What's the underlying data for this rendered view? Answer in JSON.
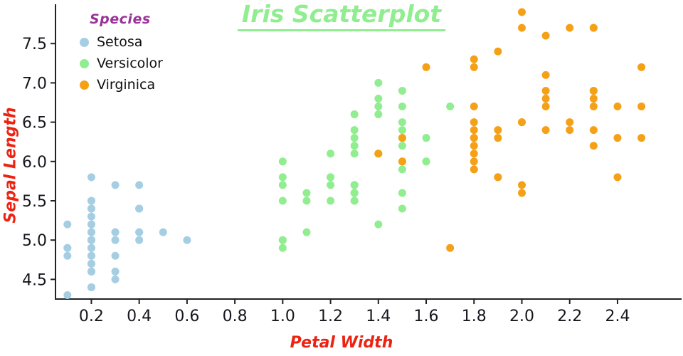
{
  "styles": {
    "title_color": "#90ee90",
    "axis_label_color": "#ee2211",
    "legend_title_color": "#993399",
    "axis_line_color": "#222222",
    "tick_text_color": "#16161d"
  },
  "chart_data": {
    "type": "scatter",
    "title": "Iris Scatterplot",
    "xlabel": "Petal Width",
    "ylabel": "Sepal Length",
    "legend_title": "Species",
    "legend_position": "top-left",
    "grid": false,
    "xlim": [
      0.05,
      2.65
    ],
    "ylim": [
      4.25,
      8.0
    ],
    "xticks": [
      0.2,
      0.4,
      0.6,
      0.8,
      1.0,
      1.2,
      1.4,
      1.6,
      1.8,
      2.0,
      2.2,
      2.4
    ],
    "yticks": [
      4.5,
      5.0,
      5.5,
      6.0,
      6.5,
      7.0,
      7.5
    ],
    "series": [
      {
        "name": "Setosa",
        "color": "#a6cee3",
        "points": [
          [
            0.2,
            5.1
          ],
          [
            0.2,
            4.9
          ],
          [
            0.2,
            4.7
          ],
          [
            0.2,
            4.6
          ],
          [
            0.2,
            5.0
          ],
          [
            0.4,
            5.4
          ],
          [
            0.3,
            4.6
          ],
          [
            0.2,
            5.0
          ],
          [
            0.2,
            4.4
          ],
          [
            0.1,
            4.9
          ],
          [
            0.2,
            5.4
          ],
          [
            0.2,
            4.8
          ],
          [
            0.1,
            4.8
          ],
          [
            0.1,
            4.3
          ],
          [
            0.2,
            5.8
          ],
          [
            0.4,
            5.7
          ],
          [
            0.4,
            5.4
          ],
          [
            0.3,
            5.1
          ],
          [
            0.3,
            5.7
          ],
          [
            0.3,
            5.1
          ],
          [
            0.2,
            5.4
          ],
          [
            0.4,
            5.1
          ],
          [
            0.2,
            4.6
          ],
          [
            0.5,
            5.1
          ],
          [
            0.2,
            4.8
          ],
          [
            0.2,
            5.0
          ],
          [
            0.4,
            5.0
          ],
          [
            0.2,
            5.2
          ],
          [
            0.2,
            5.2
          ],
          [
            0.2,
            4.7
          ],
          [
            0.2,
            4.8
          ],
          [
            0.4,
            5.4
          ],
          [
            0.1,
            5.2
          ],
          [
            0.2,
            5.5
          ],
          [
            0.2,
            4.9
          ],
          [
            0.2,
            5.0
          ],
          [
            0.2,
            5.5
          ],
          [
            0.1,
            4.9
          ],
          [
            0.2,
            4.4
          ],
          [
            0.2,
            5.1
          ],
          [
            0.3,
            5.0
          ],
          [
            0.3,
            4.5
          ],
          [
            0.2,
            4.4
          ],
          [
            0.6,
            5.0
          ],
          [
            0.4,
            5.1
          ],
          [
            0.3,
            4.8
          ],
          [
            0.2,
            5.1
          ],
          [
            0.2,
            4.6
          ],
          [
            0.2,
            5.3
          ],
          [
            0.2,
            5.0
          ]
        ]
      },
      {
        "name": "Versicolor",
        "color": "#90ee90",
        "points": [
          [
            1.4,
            7.0
          ],
          [
            1.5,
            6.4
          ],
          [
            1.5,
            6.9
          ],
          [
            1.3,
            5.5
          ],
          [
            1.5,
            6.5
          ],
          [
            1.3,
            5.7
          ],
          [
            1.6,
            6.3
          ],
          [
            1.0,
            4.9
          ],
          [
            1.3,
            6.6
          ],
          [
            1.4,
            5.2
          ],
          [
            1.0,
            5.0
          ],
          [
            1.5,
            5.9
          ],
          [
            1.0,
            6.0
          ],
          [
            1.4,
            6.1
          ],
          [
            1.3,
            5.6
          ],
          [
            1.4,
            6.7
          ],
          [
            1.5,
            5.6
          ],
          [
            1.0,
            5.8
          ],
          [
            1.5,
            6.2
          ],
          [
            1.1,
            5.6
          ],
          [
            1.8,
            5.9
          ],
          [
            1.3,
            6.1
          ],
          [
            1.5,
            6.3
          ],
          [
            1.2,
            6.1
          ],
          [
            1.3,
            6.4
          ],
          [
            1.4,
            6.6
          ],
          [
            1.4,
            6.8
          ],
          [
            1.7,
            6.7
          ],
          [
            1.5,
            6.0
          ],
          [
            1.0,
            5.7
          ],
          [
            1.1,
            5.5
          ],
          [
            1.0,
            5.5
          ],
          [
            1.2,
            5.8
          ],
          [
            1.6,
            6.0
          ],
          [
            1.5,
            5.4
          ],
          [
            1.6,
            6.0
          ],
          [
            1.5,
            6.7
          ],
          [
            1.3,
            6.3
          ],
          [
            1.3,
            5.6
          ],
          [
            1.3,
            5.5
          ],
          [
            1.2,
            5.5
          ],
          [
            1.4,
            6.1
          ],
          [
            1.2,
            5.8
          ],
          [
            1.0,
            5.0
          ],
          [
            1.3,
            5.6
          ],
          [
            1.2,
            5.7
          ],
          [
            1.3,
            5.7
          ],
          [
            1.3,
            6.2
          ],
          [
            1.1,
            5.1
          ],
          [
            1.3,
            5.7
          ]
        ]
      },
      {
        "name": "Virginica",
        "color": "#f5a118",
        "points": [
          [
            2.5,
            6.3
          ],
          [
            1.9,
            5.8
          ],
          [
            2.1,
            7.1
          ],
          [
            1.8,
            6.3
          ],
          [
            2.2,
            6.5
          ],
          [
            2.1,
            7.6
          ],
          [
            1.7,
            4.9
          ],
          [
            1.8,
            7.3
          ],
          [
            1.8,
            6.7
          ],
          [
            2.5,
            7.2
          ],
          [
            2.0,
            6.5
          ],
          [
            1.9,
            6.4
          ],
          [
            2.1,
            6.8
          ],
          [
            2.0,
            5.7
          ],
          [
            2.4,
            5.8
          ],
          [
            2.3,
            6.4
          ],
          [
            1.8,
            6.5
          ],
          [
            2.2,
            7.7
          ],
          [
            2.3,
            7.7
          ],
          [
            1.5,
            6.0
          ],
          [
            2.3,
            6.9
          ],
          [
            2.0,
            5.6
          ],
          [
            2.0,
            7.7
          ],
          [
            1.8,
            6.3
          ],
          [
            2.1,
            6.7
          ],
          [
            1.8,
            7.2
          ],
          [
            1.8,
            6.2
          ],
          [
            1.8,
            6.1
          ],
          [
            2.1,
            6.4
          ],
          [
            1.6,
            7.2
          ],
          [
            1.9,
            7.4
          ],
          [
            2.0,
            7.9
          ],
          [
            2.2,
            6.4
          ],
          [
            1.5,
            6.3
          ],
          [
            1.4,
            6.1
          ],
          [
            2.3,
            7.7
          ],
          [
            2.4,
            6.3
          ],
          [
            1.8,
            6.4
          ],
          [
            1.8,
            6.0
          ],
          [
            2.1,
            6.9
          ],
          [
            2.4,
            6.7
          ],
          [
            2.3,
            6.9
          ],
          [
            1.9,
            5.8
          ],
          [
            2.3,
            6.8
          ],
          [
            2.5,
            6.7
          ],
          [
            2.3,
            6.7
          ],
          [
            1.9,
            6.3
          ],
          [
            2.0,
            6.5
          ],
          [
            2.3,
            6.2
          ],
          [
            1.8,
            5.9
          ]
        ]
      }
    ]
  }
}
